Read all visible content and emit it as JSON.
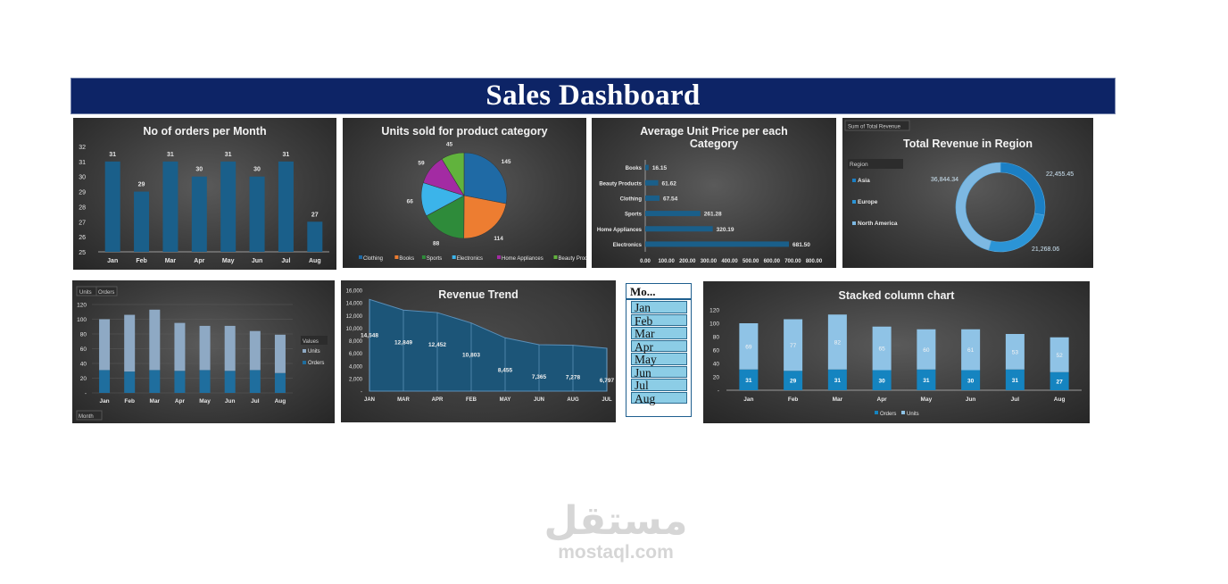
{
  "header": {
    "title": "Sales Dashboard"
  },
  "colors": {
    "banner": "#0d2466",
    "bar": "#1a5f8a",
    "accent": "#2e9ad8",
    "light": "#8fc3e6"
  },
  "slicer": {
    "title": "Mo...",
    "items": [
      "Jan",
      "Feb",
      "Mar",
      "Apr",
      "May",
      "Jun",
      "Jul",
      "Aug"
    ]
  },
  "watermark": {
    "arabic": "مستقل",
    "latin": "mostaql.com"
  },
  "chart_data": [
    {
      "type": "bar",
      "title": "No of orders per Month",
      "categories": [
        "Jan",
        "Feb",
        "Mar",
        "Apr",
        "May",
        "Jun",
        "Jul",
        "Aug"
      ],
      "values": [
        31,
        29,
        31,
        30,
        31,
        30,
        31,
        27
      ],
      "ylim": [
        25,
        32
      ],
      "yticks": [
        "25",
        "26",
        "27",
        "28",
        "29",
        "30",
        "31",
        "32"
      ]
    },
    {
      "type": "pie",
      "title": "Units sold for product category",
      "categories": [
        "Clothing",
        "Books",
        "Sports",
        "Electronics",
        "Home Appliances",
        "Beauty Products"
      ],
      "values": [
        145,
        114,
        88,
        66,
        59,
        45
      ],
      "colors": [
        "#1f6aa5",
        "#ed7d31",
        "#2e8b3a",
        "#3bb4ea",
        "#a32ba3",
        "#61b33d"
      ]
    },
    {
      "type": "bar",
      "orientation": "horizontal",
      "title": "Average Unit Price per each Category",
      "categories": [
        "Books",
        "Beauty Products",
        "Clothing",
        "Sports",
        "Home Appliances",
        "Electronics"
      ],
      "values": [
        16.15,
        61.62,
        67.54,
        261.28,
        320.19,
        681.5
      ],
      "labels": [
        "16.15",
        "61.62",
        "67.54",
        "261.28",
        "320.19",
        "681.50"
      ],
      "xlim": [
        0,
        800
      ],
      "xticks": [
        "0.00",
        "100.00",
        "200.00",
        "300.00",
        "400.00",
        "500.00",
        "600.00",
        "700.00",
        "800.00"
      ]
    },
    {
      "type": "pie",
      "style": "doughnut",
      "title": "Total Revenue in Region",
      "field_button": "Sum of Total Revenue",
      "legend_title": "Region",
      "categories": [
        "Asia",
        "Europe",
        "North America"
      ],
      "values": [
        22455.45,
        21268.06,
        36844.34
      ],
      "labels": [
        "22,455.45",
        "21,268.06",
        "36,844.34"
      ],
      "colors": [
        "#1b7fc4",
        "#2b94d6",
        "#7db8e2"
      ]
    },
    {
      "type": "bar",
      "stacked": true,
      "field_buttons": [
        "Units",
        "Orders"
      ],
      "axis_button": "Month",
      "legend_title": "Values",
      "categories": [
        "Jan",
        "Feb",
        "Mar",
        "Apr",
        "May",
        "Jun",
        "Jul",
        "Aug"
      ],
      "series": [
        {
          "name": "Orders",
          "values": [
            31,
            29,
            31,
            30,
            31,
            30,
            31,
            27
          ]
        },
        {
          "name": "Units",
          "values": [
            69,
            77,
            82,
            65,
            60,
            61,
            53,
            52
          ]
        }
      ],
      "ylim": [
        0,
        120
      ],
      "yticks": [
        "-",
        "20",
        "40",
        "60",
        "80",
        "100",
        "120"
      ]
    },
    {
      "type": "area",
      "title": "Revenue Trend",
      "categories": [
        "JAN",
        "MAR",
        "APR",
        "FEB",
        "MAY",
        "JUN",
        "AUG",
        "JUL"
      ],
      "values": [
        14548,
        12849,
        12452,
        10803,
        8455,
        7365,
        7278,
        6797
      ],
      "labels": [
        "14,548",
        "12,849",
        "12,452",
        "10,803",
        "8,455",
        "7,365",
        "7,278",
        "6,797"
      ],
      "ylim": [
        0,
        16000
      ],
      "yticks": [
        "-",
        "2,000",
        "4,000",
        "6,000",
        "8,000",
        "10,000",
        "12,000",
        "14,000",
        "16,000"
      ]
    },
    {
      "type": "bar",
      "stacked": true,
      "title": "Stacked column chart",
      "categories": [
        "Jan",
        "Feb",
        "Mar",
        "Apr",
        "May",
        "Jun",
        "Jul",
        "Aug"
      ],
      "series": [
        {
          "name": "Orders",
          "values": [
            31,
            29,
            31,
            30,
            31,
            30,
            31,
            27
          ]
        },
        {
          "name": "Units",
          "values": [
            69,
            77,
            82,
            65,
            60,
            61,
            53,
            52
          ]
        }
      ],
      "ylim": [
        0,
        120
      ],
      "yticks": [
        "-",
        "20",
        "40",
        "60",
        "80",
        "100",
        "120"
      ]
    }
  ]
}
